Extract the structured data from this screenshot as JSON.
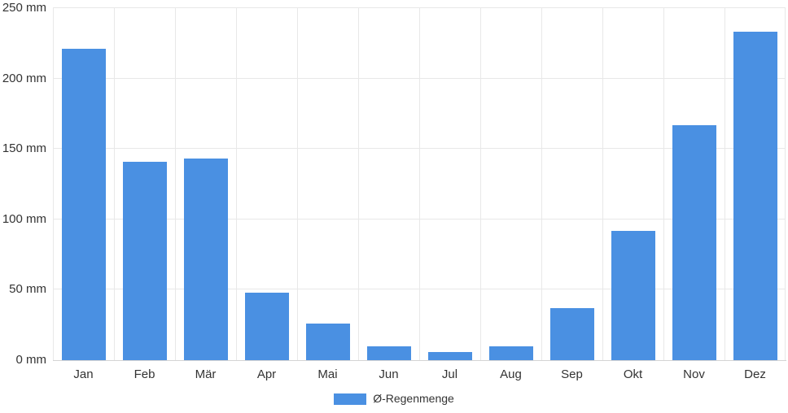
{
  "chart_data": {
    "type": "bar",
    "title": "",
    "categories": [
      "Jan",
      "Feb",
      "Mär",
      "Apr",
      "Mai",
      "Jun",
      "Jul",
      "Aug",
      "Sep",
      "Okt",
      "Nov",
      "Dez"
    ],
    "series": [
      {
        "name": "Ø-Regenmenge",
        "values": [
          221,
          141,
          143,
          48,
          26,
          10,
          6,
          10,
          37,
          92,
          167,
          233
        ]
      }
    ],
    "xlabel": "",
    "ylabel": "",
    "ylim": [
      0,
      250
    ],
    "yticks": [
      0,
      50,
      100,
      150,
      200,
      250
    ],
    "ytick_labels": [
      "0 mm",
      "50 mm",
      "100 mm",
      "150 mm",
      "200 mm",
      "250 mm"
    ],
    "unit": "mm",
    "grid": "both",
    "legend_position": "bottom"
  },
  "colors": {
    "bar": "#4a90e2",
    "grid": "#e8e8e8",
    "axis_line": "#d4d4d4",
    "text": "#333333",
    "background": "#ffffff"
  }
}
